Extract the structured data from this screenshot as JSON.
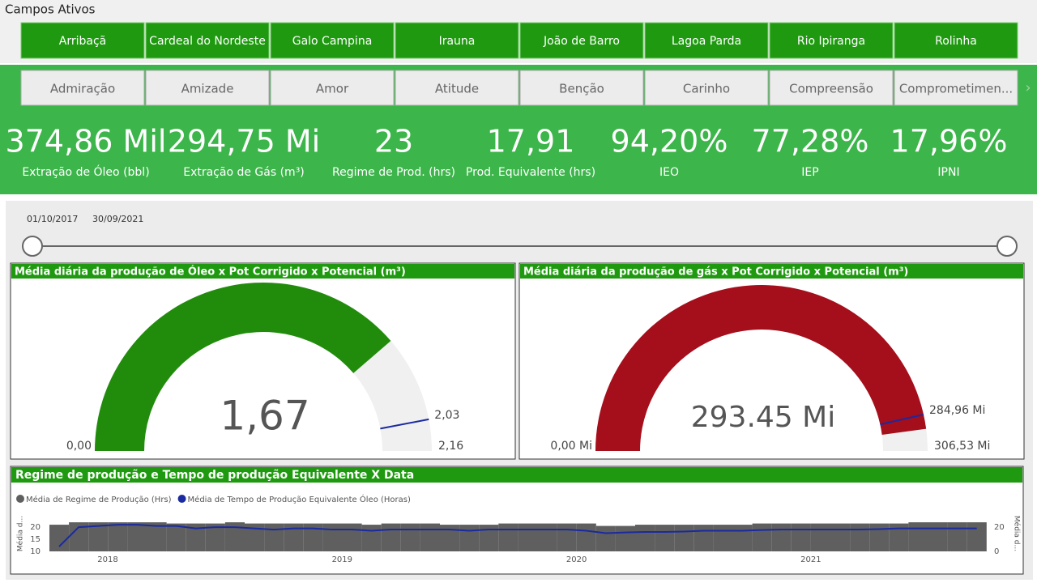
{
  "header": {
    "title": "Campos Ativos"
  },
  "fields": [
    "Arribaçã",
    "Cardeal do Nordeste",
    "Galo Campina",
    "Irauna",
    "João de Barro",
    "Lagoa Parda",
    "Rio Ipiranga",
    "Rolinha"
  ],
  "filters": [
    "Admiração",
    "Amizade",
    "Amor",
    "Atitude",
    "Benção",
    "Carinho",
    "Compreensão",
    "Comprometimen..."
  ],
  "kpis": [
    {
      "value": "374,86 Mil",
      "label": "Extração de Óleo (bbl)"
    },
    {
      "value": "294,75 Mi",
      "label": "Extração de Gás (m³)"
    },
    {
      "value": "23",
      "label": "Regime de Prod. (hrs)"
    },
    {
      "value": "17,91",
      "label": "Prod. Equivalente (hrs)"
    },
    {
      "value": "94,20%",
      "label": "IEO"
    },
    {
      "value": "77,28%",
      "label": "IEP"
    },
    {
      "value": "17,96%",
      "label": "IPNI"
    }
  ],
  "date_slicer": {
    "start": "01/10/2017",
    "end": "30/09/2021"
  },
  "gauges": [
    {
      "title": "Média diária da produção de Óleo x Pot Corrigido x Potencial (m³)",
      "color": "#218c0c",
      "value": 1.67,
      "value_label": "1,67",
      "min": 0,
      "min_label": "0,00",
      "max": 2.16,
      "max_label": "2,16",
      "target": 2.03,
      "target_label": "2,03"
    },
    {
      "title": "Média diária da produção de gás x Pot Corrigido x Potencial (m³)",
      "color": "#a50e1b",
      "value": 293.45,
      "value_label": "293.45 Mi",
      "min": 0,
      "min_label": "0,00 Mi",
      "max": 306.53,
      "max_label": "306,53 Mi",
      "target": 284.96,
      "target_label": "284,96 Mi"
    }
  ],
  "chart_data": {
    "type": "bar",
    "title": "Regime de produção e Tempo de produção Equivalente X Data",
    "x_labels": [
      "2018",
      "2019",
      "2020",
      "2021"
    ],
    "y_label": "Média d...",
    "y2_label": "Média d...",
    "ylim": [
      10,
      24.7
    ],
    "yticks": [
      20,
      15,
      10
    ],
    "y2lim": [
      0,
      29.4
    ],
    "y2ticks": [
      20,
      0
    ],
    "series": [
      {
        "name": "Média de Regime de Produção (Hrs)",
        "color": "#5f5f5f",
        "axis": "y2",
        "values": [
          22,
          24,
          24,
          24,
          24,
          24,
          23,
          23,
          23,
          24,
          23,
          23,
          23,
          23,
          23,
          23,
          22,
          23,
          23,
          23,
          22,
          22,
          22,
          23,
          23,
          23,
          23,
          23,
          21,
          21,
          22,
          22,
          22,
          22,
          22,
          22,
          23,
          23,
          23,
          23,
          23,
          23,
          23,
          23,
          24,
          24,
          24,
          24
        ]
      },
      {
        "name": "Média de Tempo de Produção Equivalente Óleo (Horas)",
        "color": "#1a2aa0",
        "values": [
          12,
          20,
          20.5,
          21,
          21,
          20.5,
          20.5,
          19.5,
          20,
          20,
          19.5,
          19,
          19.5,
          19.5,
          19,
          19,
          18.5,
          19,
          19,
          19,
          19,
          18.5,
          19,
          19,
          19,
          19,
          19,
          18.5,
          17.5,
          17.8,
          18,
          18,
          18.2,
          18.5,
          18.5,
          18.5,
          18.8,
          19,
          19,
          19,
          19,
          19,
          19.2,
          19.5,
          19.5,
          19.5,
          19.5,
          19.5
        ]
      }
    ]
  }
}
